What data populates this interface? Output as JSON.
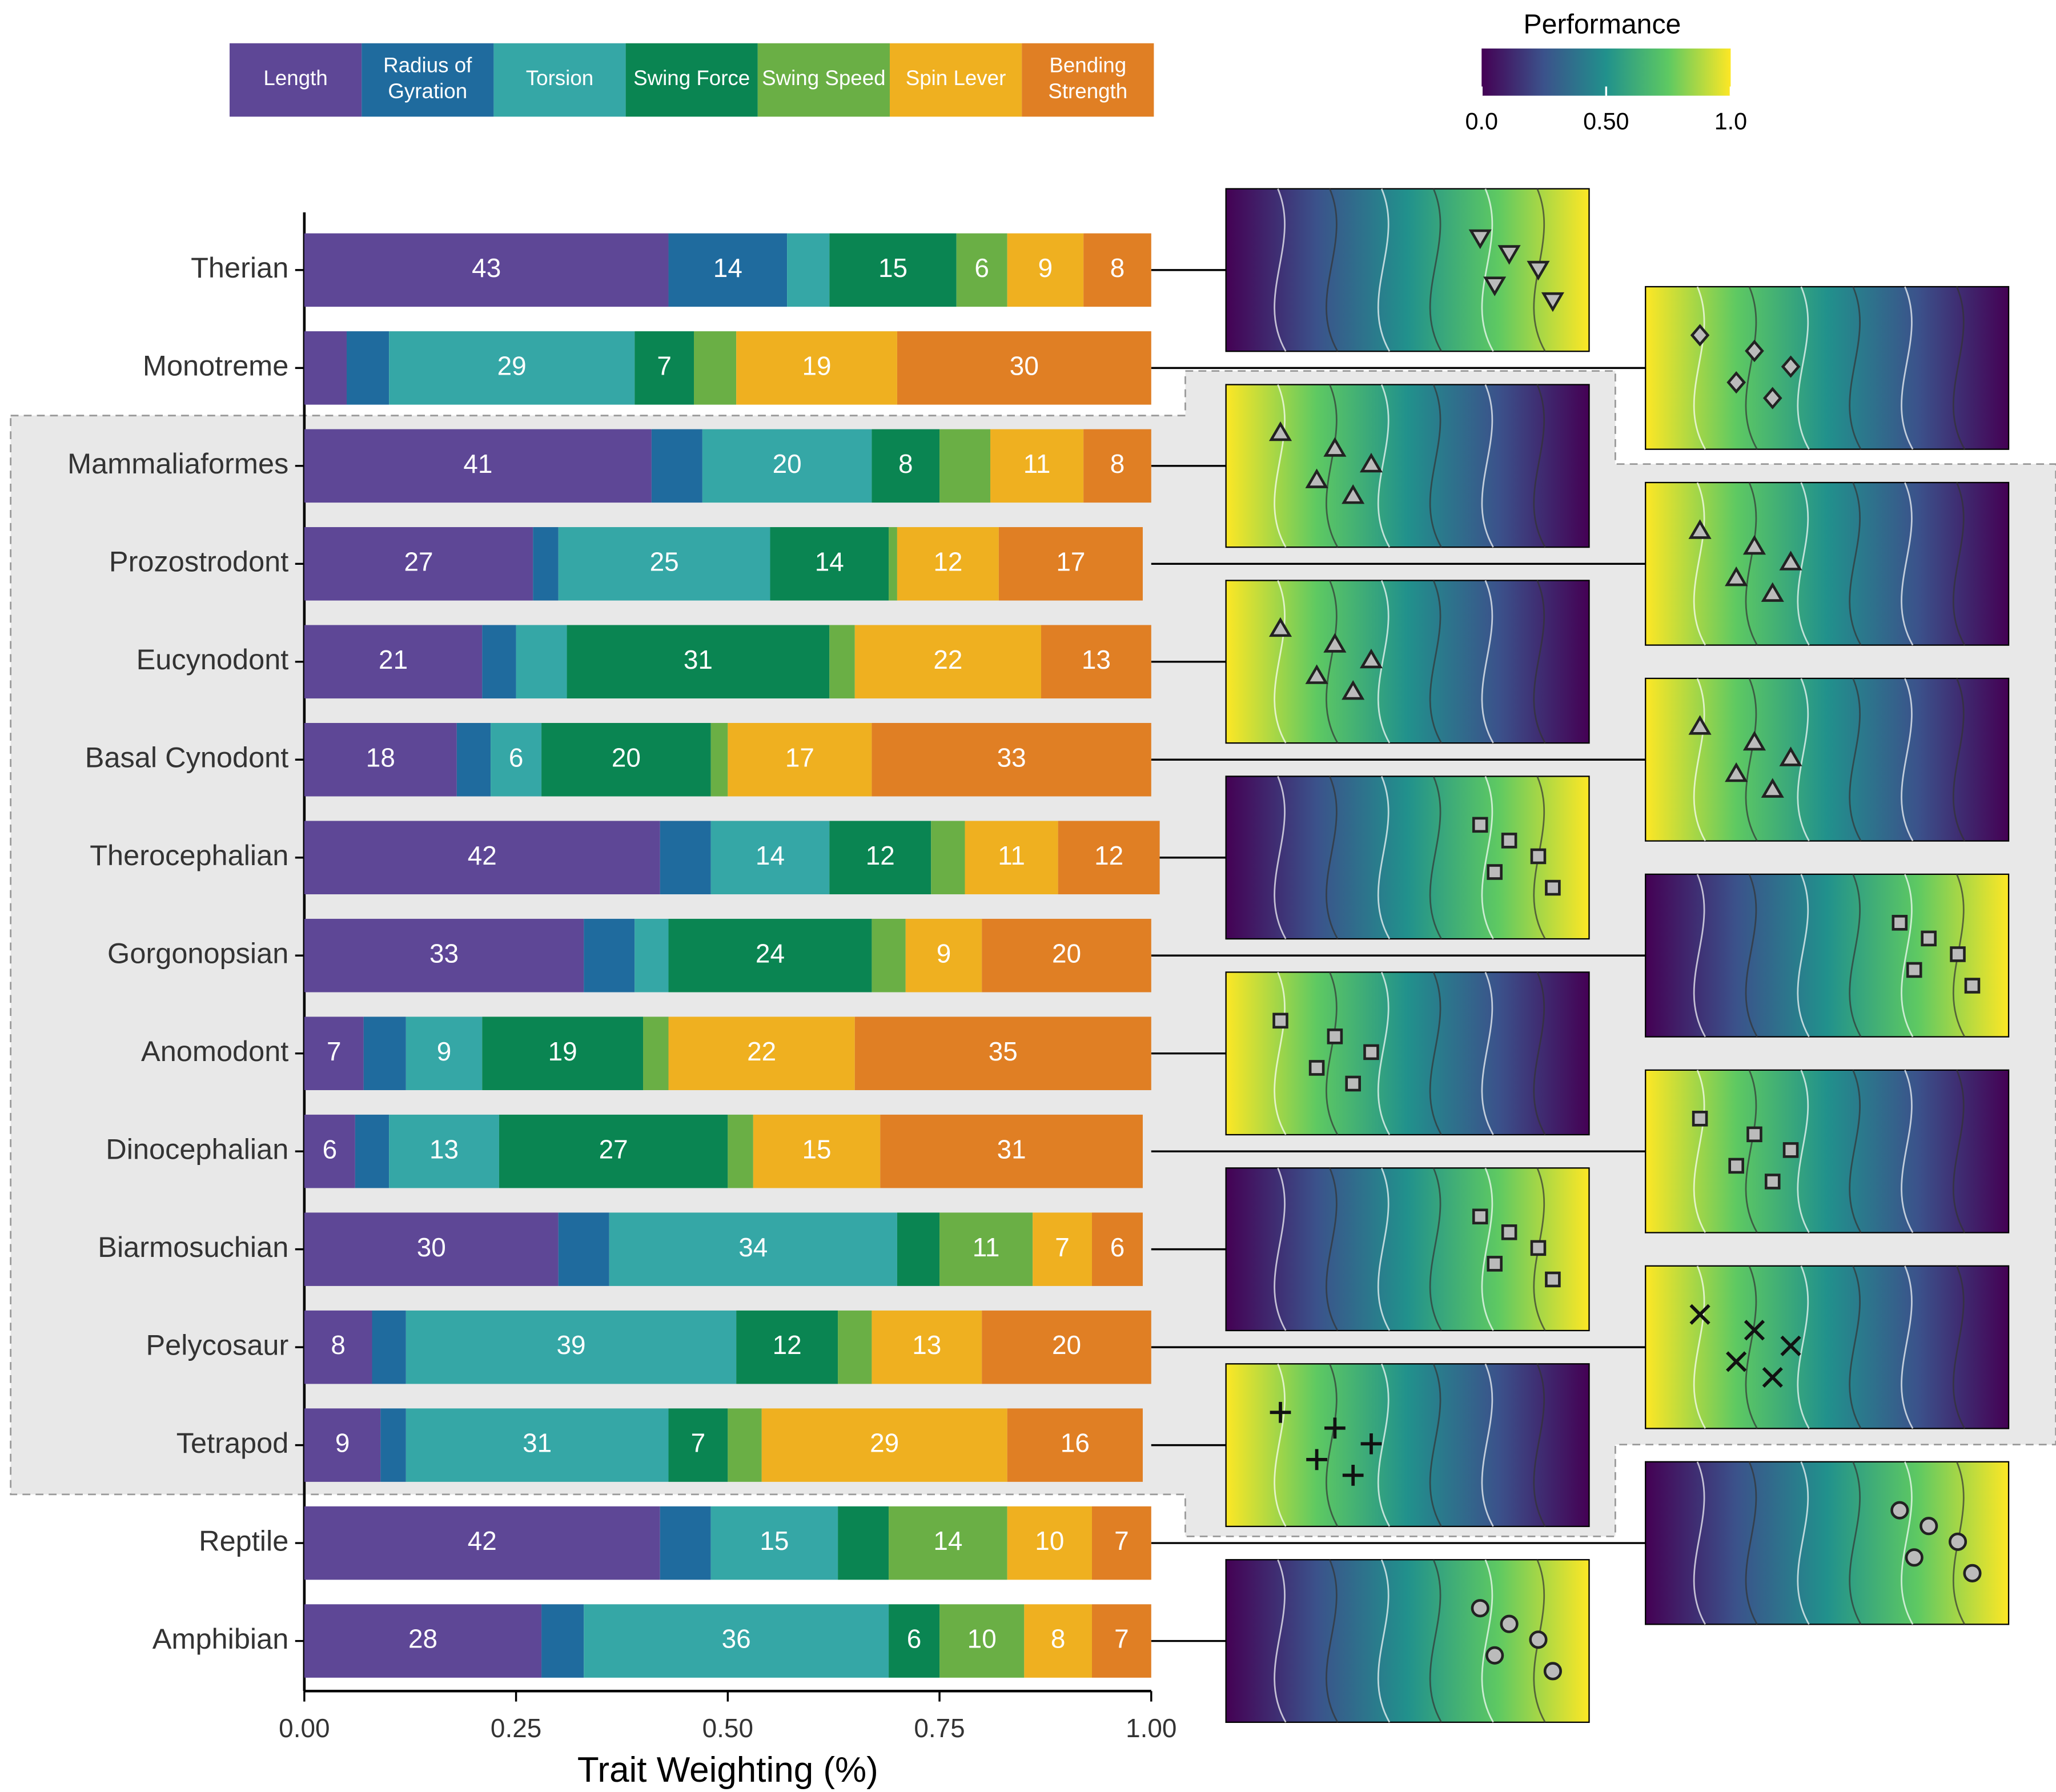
{
  "chart_data": {
    "type": "bar",
    "orientation": "horizontal",
    "stacked": true,
    "x_label": "Trait Weighting (%)",
    "colorbar_title": "Performance",
    "colorbar_ticks": [
      {
        "value": 0,
        "label": "0.0"
      },
      {
        "value": 0.5,
        "label": "0.50"
      },
      {
        "value": 1,
        "label": "1.0"
      }
    ],
    "categories": [
      "Therian",
      "Monotreme",
      "Mammaliaformes",
      "Prozostrodont",
      "Eucynodont",
      "Basal Cynodont",
      "Therocephalian",
      "Gorgonopsian",
      "Anomodont",
      "Dinocephalian",
      "Biarmosuchian",
      "Pelycosaur",
      "Tetrapod",
      "Reptile",
      "Amphibian"
    ],
    "xlim": [
      0,
      1
    ],
    "xticks": [
      {
        "value": 0,
        "label": "0.00"
      },
      {
        "value": 0.25,
        "label": "0.25"
      },
      {
        "value": 0.5,
        "label": "0.50"
      },
      {
        "value": 0.75,
        "label": "0.75"
      },
      {
        "value": 1,
        "label": "1.00"
      }
    ],
    "series": [
      {
        "name": "Length",
        "color": "#5e4796",
        "values": [
          0.43,
          0.05,
          0.41,
          0.27,
          0.21,
          0.18,
          0.42,
          0.33,
          0.07,
          0.06,
          0.3,
          0.08,
          0.09,
          0.42,
          0.28
        ],
        "value_labels": [
          "43",
          null,
          "41",
          "27",
          "21",
          "18",
          "42",
          "33",
          "7",
          "6",
          "30",
          "8",
          "9",
          "42",
          "28"
        ]
      },
      {
        "name": "Radius of Gyration",
        "color": "#1f6b9e",
        "values": [
          0.14,
          0.05,
          0.06,
          0.03,
          0.04,
          0.04,
          0.06,
          0.06,
          0.05,
          0.04,
          0.06,
          0.04,
          0.03,
          0.06,
          0.05
        ],
        "value_labels": [
          "14",
          null,
          null,
          null,
          null,
          null,
          null,
          null,
          null,
          null,
          null,
          null,
          null,
          null,
          null
        ]
      },
      {
        "name": "Torsion",
        "color": "#35a7a6",
        "values": [
          0.05,
          0.29,
          0.2,
          0.25,
          0.06,
          0.06,
          0.14,
          0.04,
          0.09,
          0.13,
          0.34,
          0.39,
          0.31,
          0.15,
          0.36
        ],
        "value_labels": [
          null,
          "29",
          "20",
          "25",
          null,
          "6",
          "14",
          null,
          "9",
          "13",
          "34",
          "39",
          "31",
          "15",
          "36"
        ]
      },
      {
        "name": "Swing Force",
        "color": "#0a8552",
        "values": [
          0.15,
          0.07,
          0.08,
          0.14,
          0.31,
          0.2,
          0.12,
          0.24,
          0.19,
          0.27,
          0.05,
          0.12,
          0.07,
          0.06,
          0.06
        ],
        "value_labels": [
          "15",
          "7",
          "8",
          "14",
          "31",
          "20",
          "12",
          "24",
          "19",
          "27",
          null,
          "12",
          "7",
          null,
          "6"
        ]
      },
      {
        "name": "Swing Speed",
        "color": "#6aaf45",
        "values": [
          0.06,
          0.05,
          0.06,
          0.01,
          0.03,
          0.02,
          0.04,
          0.04,
          0.03,
          0.03,
          0.11,
          0.04,
          0.04,
          0.14,
          0.1
        ],
        "value_labels": [
          "6",
          null,
          null,
          null,
          null,
          null,
          null,
          null,
          null,
          null,
          "11",
          null,
          null,
          "14",
          "10"
        ]
      },
      {
        "name": "Spin Lever",
        "color": "#efb020",
        "values": [
          0.09,
          0.19,
          0.11,
          0.12,
          0.22,
          0.17,
          0.11,
          0.09,
          0.22,
          0.15,
          0.07,
          0.13,
          0.29,
          0.1,
          0.08
        ],
        "value_labels": [
          "9",
          "19",
          "11",
          "12",
          "22",
          "17",
          "11",
          "9",
          "22",
          "15",
          "7",
          "13",
          "29",
          "10",
          "8"
        ]
      },
      {
        "name": "Bending Strength",
        "color": "#e07f24",
        "values": [
          0.08,
          0.3,
          0.08,
          0.17,
          0.13,
          0.33,
          0.12,
          0.2,
          0.35,
          0.31,
          0.06,
          0.2,
          0.16,
          0.07,
          0.07
        ],
        "value_labels": [
          "8",
          "30",
          "8",
          "17",
          "13",
          "33",
          "12",
          "20",
          "35",
          "31",
          "6",
          "20",
          "16",
          "7",
          "7"
        ]
      }
    ]
  }
}
